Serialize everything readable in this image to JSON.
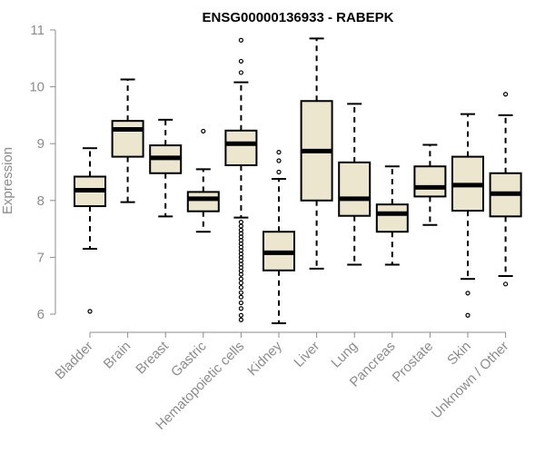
{
  "chart_data": {
    "type": "boxplot",
    "title": "ENSG00000136933 - RABEPK",
    "xlabel": "",
    "ylabel": "Expression",
    "ylim": [
      5.8,
      11.1
    ],
    "yticks": [
      6,
      7,
      8,
      9,
      10,
      11
    ],
    "categories": [
      "Bladder",
      "Brain",
      "Breast",
      "Gastric",
      "Hematopoietic cells",
      "Kidney",
      "Liver",
      "Lung",
      "Pancreas",
      "Prostate",
      "Skin",
      "Unknown / Other"
    ],
    "series": [
      {
        "name": "Bladder",
        "whisker_low": 7.15,
        "q1": 7.9,
        "median": 8.18,
        "q3": 8.42,
        "whisker_high": 8.92,
        "outliers": [
          6.05
        ]
      },
      {
        "name": "Brain",
        "whisker_low": 7.97,
        "q1": 8.77,
        "median": 9.25,
        "q3": 9.4,
        "whisker_high": 10.13,
        "outliers": []
      },
      {
        "name": "Breast",
        "whisker_low": 7.72,
        "q1": 8.48,
        "median": 8.75,
        "q3": 8.97,
        "whisker_high": 9.42,
        "outliers": []
      },
      {
        "name": "Gastric",
        "whisker_low": 7.45,
        "q1": 7.81,
        "median": 8.03,
        "q3": 8.15,
        "whisker_high": 8.55,
        "outliers": [
          9.22
        ]
      },
      {
        "name": "Hematopoietic cells",
        "whisker_low": 7.7,
        "q1": 8.62,
        "median": 9.0,
        "q3": 9.23,
        "whisker_high": 10.08,
        "outliers": [
          10.82,
          10.45,
          10.25,
          7.62,
          7.55,
          7.48,
          7.42,
          7.36,
          7.3,
          7.24,
          7.18,
          7.12,
          7.06,
          7.0,
          6.94,
          6.88,
          6.82,
          6.76,
          6.7,
          6.62,
          6.55,
          6.47,
          6.38,
          6.3,
          6.2,
          6.1,
          5.98,
          5.9
        ]
      },
      {
        "name": "Kidney",
        "whisker_low": 5.84,
        "q1": 6.77,
        "median": 7.08,
        "q3": 7.45,
        "whisker_high": 8.38,
        "outliers": [
          8.5,
          8.7,
          8.85
        ]
      },
      {
        "name": "Liver",
        "whisker_low": 6.8,
        "q1": 8.0,
        "median": 8.87,
        "q3": 9.75,
        "whisker_high": 10.85,
        "outliers": []
      },
      {
        "name": "Lung",
        "whisker_low": 6.87,
        "q1": 7.73,
        "median": 8.03,
        "q3": 8.67,
        "whisker_high": 9.7,
        "outliers": []
      },
      {
        "name": "Pancreas",
        "whisker_low": 6.87,
        "q1": 7.45,
        "median": 7.77,
        "q3": 7.93,
        "whisker_high": 8.6,
        "outliers": []
      },
      {
        "name": "Prostate",
        "whisker_low": 7.57,
        "q1": 8.07,
        "median": 8.23,
        "q3": 8.6,
        "whisker_high": 8.98,
        "outliers": []
      },
      {
        "name": "Skin",
        "whisker_low": 6.62,
        "q1": 7.82,
        "median": 8.27,
        "q3": 8.77,
        "whisker_high": 9.52,
        "outliers": [
          6.37,
          5.98
        ]
      },
      {
        "name": "Unknown / Other",
        "whisker_low": 6.67,
        "q1": 7.72,
        "median": 8.12,
        "q3": 8.48,
        "whisker_high": 9.5,
        "outliers": [
          6.53,
          9.87
        ]
      }
    ]
  }
}
